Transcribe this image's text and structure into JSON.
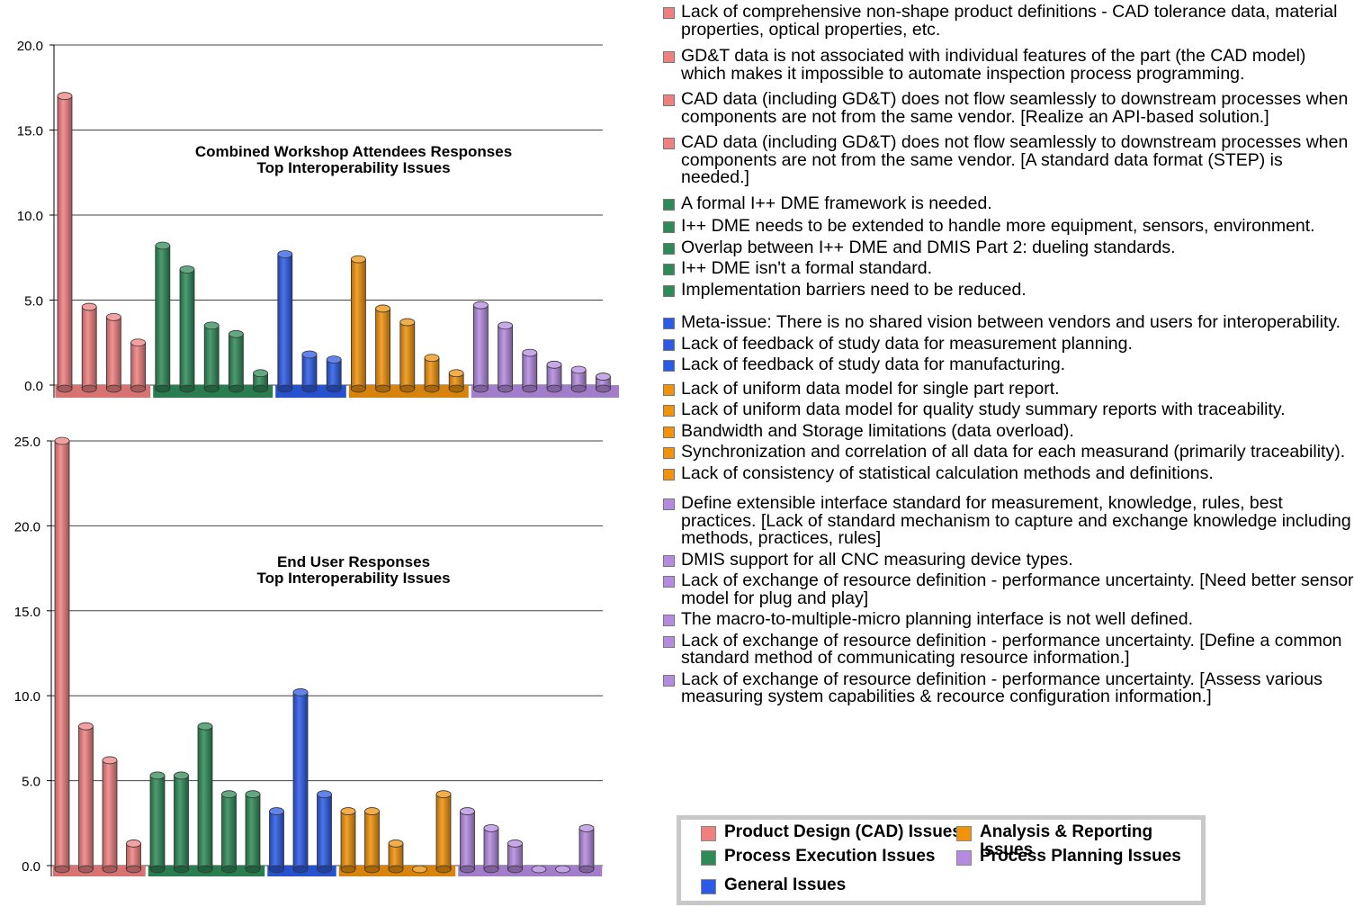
{
  "colors": {
    "cad": "#f08080",
    "execution": "#2e8b57",
    "general": "#2b5be6",
    "analysis": "#f0920a",
    "planning": "#b48be0"
  },
  "chart_data": [
    {
      "type": "bar",
      "title": "Combined Workshop Attendees Responses",
      "subtitle": "Top Interoperability Issues",
      "ylim": [
        0,
        20
      ],
      "yticks": [
        "0.0",
        "5.0",
        "10.0",
        "15.0",
        "20.0"
      ],
      "grid": true,
      "groups": [
        {
          "name": "Product Design (CAD) Issues",
          "color_key": "cad",
          "values": [
            17,
            4.6,
            4,
            2.5
          ]
        },
        {
          "name": "Process Execution Issues",
          "color_key": "execution",
          "values": [
            8.2,
            6.8,
            3.5,
            3,
            0.7
          ]
        },
        {
          "name": "General Issues",
          "color_key": "general",
          "values": [
            7.7,
            1.8,
            1.5
          ]
        },
        {
          "name": "Analysis & Reporting Issues",
          "color_key": "analysis",
          "values": [
            7.4,
            4.5,
            3.7,
            1.6,
            0.7
          ]
        },
        {
          "name": "Process Planning Issues",
          "color_key": "planning",
          "values": [
            4.7,
            3.5,
            1.9,
            1.2,
            0.9,
            0.5
          ]
        }
      ]
    },
    {
      "type": "bar",
      "title": "End User Responses",
      "subtitle": "Top Interoperability Issues",
      "ylim": [
        0,
        25
      ],
      "yticks": [
        "0.0",
        "5.0",
        "10.0",
        "15.0",
        "20.0",
        "25.0"
      ],
      "grid": true,
      "groups": [
        {
          "name": "Product Design (CAD) Issues",
          "color_key": "cad",
          "values": [
            25,
            8.2,
            6.2,
            1.3
          ]
        },
        {
          "name": "Process Execution Issues",
          "color_key": "execution",
          "values": [
            5.3,
            5.3,
            8.2,
            4.2,
            4.2
          ]
        },
        {
          "name": "General Issues",
          "color_key": "general",
          "values": [
            3.2,
            10.2,
            4.2
          ]
        },
        {
          "name": "Analysis & Reporting Issues",
          "color_key": "analysis",
          "values": [
            3.2,
            3.2,
            1.3,
            0,
            4.2
          ]
        },
        {
          "name": "Process Planning Issues",
          "color_key": "planning",
          "values": [
            3.2,
            2.2,
            1.3,
            0,
            0,
            2.2
          ]
        }
      ]
    }
  ],
  "issues": [
    {
      "cat": "cad",
      "text": "Lack of comprehensive non-shape product definitions - CAD tolerance data, material properties, optical properties, etc."
    },
    {
      "cat": "cad",
      "text": "GD&T data is not associated with individual features of the part (the CAD model) which makes it impossible to automate inspection process programming."
    },
    {
      "cat": "cad",
      "text": "CAD data (including GD&T) does not flow seamlessly to downstream processes when components are not from the same vendor. [Realize an API-based solution.]"
    },
    {
      "cat": "cad",
      "text": "CAD data (including GD&T) does not flow seamlessly to downstream processes when components are not from the same vendor. [A standard data format (STEP) is needed.]"
    },
    {
      "cat": "execution",
      "text": "A formal I++ DME framework is needed."
    },
    {
      "cat": "execution",
      "text": "I++ DME needs to be extended to handle more equipment, sensors, environment."
    },
    {
      "cat": "execution",
      "text": "Overlap between I++ DME and DMIS Part 2: dueling standards."
    },
    {
      "cat": "execution",
      "text": "I++ DME isn't a formal standard."
    },
    {
      "cat": "execution",
      "text": "Implementation barriers need to be reduced."
    },
    {
      "cat": "general",
      "text": "Meta-issue: There is no shared vision between vendors and users for interoperability."
    },
    {
      "cat": "general",
      "text": "Lack of feedback of study data for measurement planning."
    },
    {
      "cat": "general",
      "text": "Lack of feedback of study data for manufacturing."
    },
    {
      "cat": "analysis",
      "text": "Lack of uniform data model for single part report."
    },
    {
      "cat": "analysis",
      "text": "Lack of uniform data model for quality study summary reports with traceability."
    },
    {
      "cat": "analysis",
      "text": "Bandwidth and Storage limitations (data overload)."
    },
    {
      "cat": "analysis",
      "text": "Synchronization and correlation of all data for each measurand (primarily traceability)."
    },
    {
      "cat": "analysis",
      "text": "Lack of consistency of statistical calculation methods and definitions."
    },
    {
      "cat": "planning",
      "text": "Define extensible interface standard for measurement, knowledge, rules, best practices. [Lack of standard mechanism to capture and exchange knowledge including methods, practices, rules]"
    },
    {
      "cat": "planning",
      "text": "DMIS support for all CNC measuring device types."
    },
    {
      "cat": "planning",
      "text": "Lack of exchange of resource definition - performance uncertainty. [Need better sensor model for plug and play]"
    },
    {
      "cat": "planning",
      "text": "The macro-to-multiple-micro planning interface is not well defined."
    },
    {
      "cat": "planning",
      "text": "Lack of exchange of resource definition - performance uncertainty. [Define a common standard method of communicating resource information.]"
    },
    {
      "cat": "planning",
      "text": "Lack of exchange of resource definition - performance uncertainty. [Assess various measuring system capabilities & recource configuration information.]"
    }
  ],
  "key": {
    "cad": "Product Design (CAD) Issues",
    "execution": "Process Execution Issues",
    "general": "General Issues",
    "analysis": "Analysis & Reporting Issues",
    "planning": "Process Planning Issues"
  }
}
